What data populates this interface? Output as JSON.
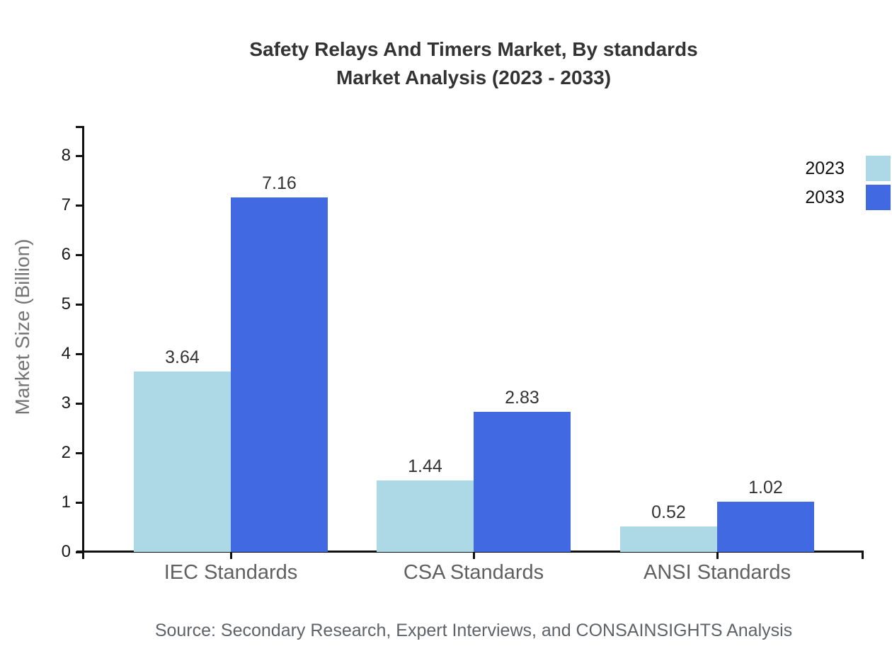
{
  "title": {
    "line1": "Safety Relays And Timers Market, By standards",
    "line2": "Market Analysis (2023 - 2033)"
  },
  "chart_data": {
    "type": "bar",
    "categories": [
      "IEC Standards",
      "CSA Standards",
      "ANSI Standards"
    ],
    "series": [
      {
        "name": "2023",
        "color": "#ADD8E6",
        "values": [
          3.64,
          1.44,
          0.52
        ]
      },
      {
        "name": "2033",
        "color": "#4169E1",
        "values": [
          7.16,
          2.83,
          1.02
        ]
      }
    ],
    "title": "Safety Relays And Timers Market, By standards Market Analysis (2023 - 2033)",
    "xlabel": "",
    "ylabel": "Market Size (Billion)",
    "ylim": [
      0,
      8.5
    ],
    "yticks": [
      0,
      1,
      2,
      3,
      4,
      5,
      6,
      7,
      8
    ],
    "grid": false,
    "legend_position": "top-right",
    "value_labels": true
  },
  "legend": {
    "items": [
      {
        "label": "2023",
        "color": "#ADD8E6"
      },
      {
        "label": "2033",
        "color": "#4169E1"
      }
    ]
  },
  "source": "Source: Secondary Research, Expert Interviews, and CONSAINSIGHTS Analysis"
}
